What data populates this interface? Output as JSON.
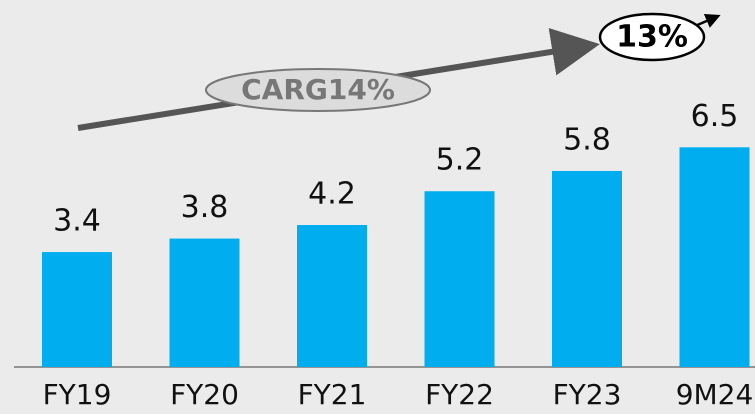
{
  "chart_data": {
    "type": "bar",
    "categories": [
      "FY19",
      "FY20",
      "FY21",
      "FY22",
      "FY23",
      "9M24"
    ],
    "values": [
      3.4,
      3.8,
      4.2,
      5.2,
      5.8,
      6.5
    ],
    "color": "#00aeef",
    "annotations": [
      "CARG14%",
      "13%"
    ]
  }
}
